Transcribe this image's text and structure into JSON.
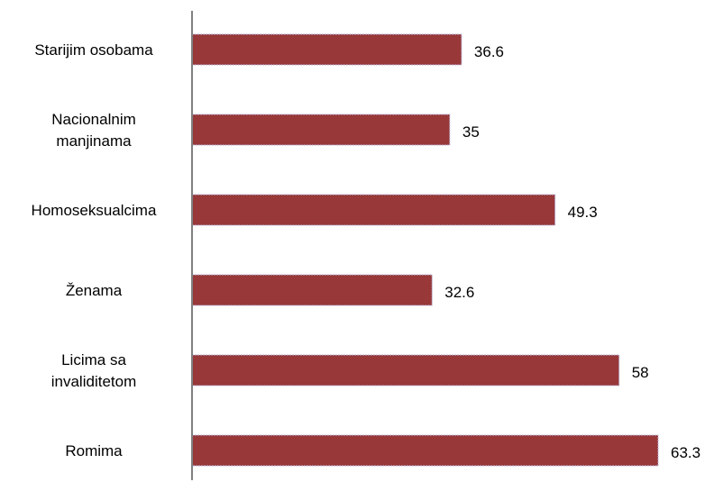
{
  "chart_data": {
    "type": "bar",
    "orientation": "horizontal",
    "categories": [
      [
        "Starijim osobama"
      ],
      [
        "Nacionalnim",
        "manjinama"
      ],
      [
        "Homoseksualcima"
      ],
      [
        "Ženama"
      ],
      [
        "Licima sa",
        "invaliditetom"
      ],
      [
        "Romima"
      ]
    ],
    "values": [
      36.6,
      35,
      49.3,
      32.6,
      58,
      63.3
    ],
    "value_labels": [
      "36.6",
      "35",
      "49.3",
      "32.6",
      "58",
      "63.3"
    ],
    "title": "",
    "xlabel": "",
    "ylabel": "",
    "xlim": [
      0,
      63.3
    ],
    "grid": false,
    "bar_color": "#983838",
    "axis_color": "#808080"
  }
}
